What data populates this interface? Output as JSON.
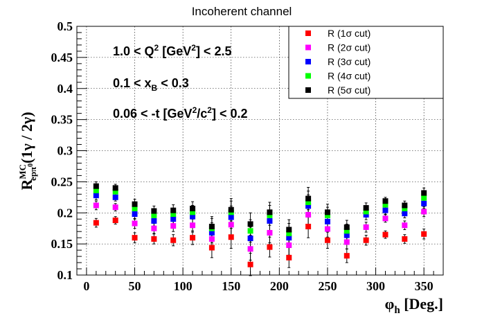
{
  "chart_data": {
    "type": "scatter",
    "title": "Incoherent channel",
    "xlabel": "φh [Deg.]",
    "ylabel": "R MC epπ0 (1γ / 2γ)",
    "xlim": [
      -10,
      370
    ],
    "ylim": [
      0.1,
      0.5
    ],
    "xticks": [
      0,
      50,
      100,
      150,
      200,
      250,
      300,
      350
    ],
    "yticks": [
      0.1,
      0.15,
      0.2,
      0.25,
      0.3,
      0.35,
      0.4,
      0.45,
      0.5
    ],
    "grid": true,
    "legend_position": "top-right",
    "annotations": [
      "1.0 < Q2 [GeV2] < 2.5",
      "0.1 < xB < 0.3",
      "0.06 < -t [GeV2/c2] < 0.2"
    ],
    "x": [
      10,
      30,
      50,
      70,
      90,
      110,
      130,
      150,
      170,
      190,
      210,
      230,
      250,
      270,
      290,
      310,
      330,
      350
    ],
    "series": [
      {
        "name": "R (1σ cut)",
        "color": "#ff0000",
        "values": [
          0.184,
          0.188,
          0.16,
          0.158,
          0.156,
          0.16,
          0.144,
          0.161,
          0.117,
          0.145,
          0.128,
          0.178,
          0.156,
          0.131,
          0.156,
          0.165,
          0.158,
          0.166
        ],
        "errors": [
          0.007,
          0.006,
          0.008,
          0.008,
          0.009,
          0.011,
          0.016,
          0.018,
          0.018,
          0.016,
          0.016,
          0.018,
          0.013,
          0.011,
          0.008,
          0.006,
          0.007,
          0.008
        ]
      },
      {
        "name": "R (2σ cut)",
        "color": "#ff00ff",
        "values": [
          0.212,
          0.209,
          0.183,
          0.175,
          0.179,
          0.18,
          0.158,
          0.181,
          0.142,
          0.168,
          0.148,
          0.197,
          0.174,
          0.153,
          0.177,
          0.191,
          0.18,
          0.202
        ],
        "errors": [
          0.007,
          0.006,
          0.008,
          0.008,
          0.009,
          0.011,
          0.016,
          0.018,
          0.018,
          0.016,
          0.016,
          0.018,
          0.013,
          0.011,
          0.008,
          0.006,
          0.007,
          0.008
        ]
      },
      {
        "name": "R (3σ cut)",
        "color": "#0000ff",
        "values": [
          0.228,
          0.225,
          0.198,
          0.187,
          0.19,
          0.194,
          0.168,
          0.193,
          0.159,
          0.187,
          0.16,
          0.211,
          0.186,
          0.164,
          0.197,
          0.204,
          0.199,
          0.215
        ],
        "errors": [
          0.007,
          0.006,
          0.008,
          0.008,
          0.009,
          0.011,
          0.016,
          0.018,
          0.018,
          0.016,
          0.016,
          0.018,
          0.013,
          0.011,
          0.008,
          0.006,
          0.007,
          0.008
        ]
      },
      {
        "name": "R (4σ cut)",
        "color": "#00ff00",
        "values": [
          0.236,
          0.234,
          0.207,
          0.196,
          0.198,
          0.201,
          0.175,
          0.201,
          0.171,
          0.196,
          0.167,
          0.217,
          0.196,
          0.171,
          0.202,
          0.213,
          0.207,
          0.224
        ],
        "errors": [
          0.007,
          0.006,
          0.008,
          0.008,
          0.009,
          0.011,
          0.016,
          0.018,
          0.018,
          0.016,
          0.016,
          0.018,
          0.013,
          0.011,
          0.008,
          0.006,
          0.007,
          0.008
        ]
      },
      {
        "name": "R (5σ cut)",
        "color": "#000000",
        "values": [
          0.243,
          0.24,
          0.214,
          0.203,
          0.204,
          0.207,
          0.178,
          0.205,
          0.182,
          0.201,
          0.173,
          0.223,
          0.201,
          0.177,
          0.208,
          0.219,
          0.212,
          0.232
        ],
        "errors": [
          0.007,
          0.006,
          0.008,
          0.008,
          0.009,
          0.011,
          0.016,
          0.018,
          0.018,
          0.016,
          0.016,
          0.018,
          0.013,
          0.011,
          0.008,
          0.006,
          0.007,
          0.008
        ]
      }
    ]
  }
}
